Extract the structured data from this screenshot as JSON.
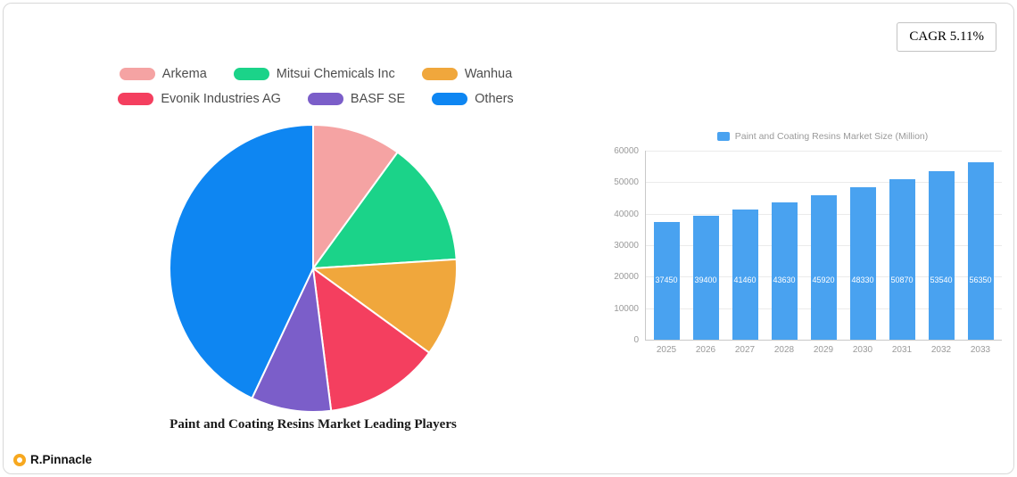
{
  "cagr_badge": "CAGR 5.11%",
  "footer": {
    "brand": "R.Pinnacle"
  },
  "chart_data": [
    {
      "type": "pie",
      "title": "Paint and Coating Resins Market Leading Players",
      "labels": [
        "Arkema",
        "Mitsui Chemicals Inc",
        "Wanhua",
        "Evonik Industries AG",
        "BASF SE",
        "Others"
      ],
      "values": [
        10,
        14,
        11,
        13,
        9,
        43
      ],
      "values_note": "estimated percent share read from slice angles",
      "colors": [
        "#f5a3a3",
        "#1bd389",
        "#f0a73c",
        "#f43f5f",
        "#7b5ec9",
        "#0e86f2"
      ],
      "legend_position": "top",
      "start_angle_deg": -90,
      "direction": "clockwise"
    },
    {
      "type": "bar",
      "legend": "Paint and Coating Resins Market Size (Million)",
      "categories": [
        "2025",
        "2026",
        "2027",
        "2028",
        "2029",
        "2030",
        "2031",
        "2032",
        "2033"
      ],
      "values": [
        37450,
        39400,
        41460,
        43630,
        45920,
        48330,
        50870,
        53540,
        56350
      ],
      "bar_color": "#49a2f0",
      "ylim": [
        0,
        60000
      ],
      "y_tick_step": 10000,
      "grid": true,
      "legend_position": "top",
      "value_labels": "inside-bottom-white"
    }
  ]
}
